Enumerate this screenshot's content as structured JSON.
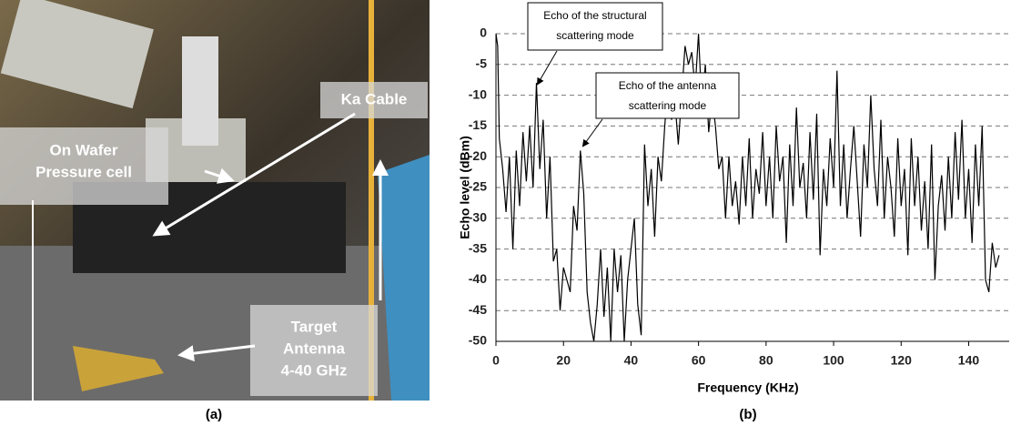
{
  "panel_a": {
    "labels": [
      [
        "On Wafer",
        "Pressure cell"
      ],
      [
        "Ka Cable"
      ],
      [
        "Target",
        "Antenna",
        "4-40 GHz"
      ]
    ],
    "caption": "(a)"
  },
  "chart_data": {
    "type": "line",
    "caption": "(b)",
    "xlabel": "Frequency (KHz)",
    "ylabel": "Echo level (dBm)",
    "color": "#000000",
    "x": [
      0,
      0.5,
      1,
      2,
      3,
      4,
      5,
      6,
      7,
      8,
      9,
      10,
      11,
      12,
      13,
      14,
      15,
      16,
      17,
      18,
      19,
      20,
      21,
      22,
      23,
      24,
      25,
      26,
      27,
      28,
      29,
      30,
      31,
      32,
      33,
      34,
      35,
      36,
      37,
      38,
      39,
      40,
      41,
      42,
      43,
      44,
      45,
      46,
      47,
      48,
      49,
      50,
      51,
      52,
      53,
      54,
      55,
      56,
      57,
      58,
      59,
      60,
      61,
      62,
      63,
      64,
      65,
      66,
      67,
      68,
      69,
      70,
      71,
      72,
      73,
      74,
      75,
      76,
      77,
      78,
      79,
      80,
      81,
      82,
      83,
      84,
      85,
      86,
      87,
      88,
      89,
      90,
      91,
      92,
      93,
      94,
      95,
      96,
      97,
      98,
      99,
      100,
      101,
      102,
      103,
      104,
      105,
      106,
      107,
      108,
      109,
      110,
      111,
      112,
      113,
      114,
      115,
      116,
      117,
      118,
      119,
      120,
      121,
      122,
      123,
      124,
      125,
      126,
      127,
      128,
      129,
      130,
      131,
      132,
      133,
      134,
      135,
      136,
      137,
      138,
      139,
      140,
      141,
      142,
      143,
      144,
      145,
      146,
      147,
      148,
      149
    ],
    "values": [
      0,
      -2,
      -17,
      -22,
      -29,
      -20,
      -35,
      -19,
      -28,
      -16,
      -24,
      -15,
      -25,
      -8,
      -22,
      -14,
      -30,
      -20,
      -37,
      -35,
      -45,
      -38,
      -40,
      -42,
      -28,
      -32,
      -19,
      -26,
      -42,
      -47,
      -50,
      -44,
      -35,
      -46,
      -38,
      -50,
      -35,
      -42,
      -36,
      -50,
      -40,
      -35,
      -30,
      -44,
      -49,
      -18,
      -28,
      -22,
      -33,
      -20,
      -24,
      -15,
      -8,
      -14,
      -11,
      -18,
      -10,
      -2,
      -5,
      -3,
      -9,
      0,
      -12,
      -5,
      -16,
      -10,
      -15,
      -22,
      -20,
      -30,
      -20,
      -28,
      -24,
      -31,
      -20,
      -28,
      -17,
      -30,
      -22,
      -26,
      -16,
      -28,
      -20,
      -30,
      -15,
      -24,
      -20,
      -34,
      -18,
      -28,
      -12,
      -25,
      -21,
      -30,
      -16,
      -27,
      -13,
      -36,
      -22,
      -28,
      -17,
      -25,
      -6,
      -28,
      -18,
      -30,
      -22,
      -15,
      -24,
      -33,
      -18,
      -25,
      -10,
      -22,
      -28,
      -14,
      -30,
      -20,
      -25,
      -33,
      -17,
      -28,
      -22,
      -36,
      -17,
      -28,
      -20,
      -32,
      -24,
      -35,
      -18,
      -40,
      -28,
      -23,
      -32,
      -20,
      -30,
      -16,
      -27,
      -14,
      -30,
      -22,
      -34,
      -18,
      -28,
      -15,
      -40,
      -42,
      -34,
      -38,
      -36
    ],
    "xlim": [
      0,
      152
    ],
    "xticks": [
      0,
      20,
      40,
      60,
      80,
      100,
      120,
      140
    ],
    "ylim": [
      -50,
      0
    ],
    "yticks": [
      0,
      -5,
      -10,
      -15,
      -20,
      -25,
      -30,
      -35,
      -40,
      -45,
      -50
    ],
    "grid": true,
    "annotations": [
      [
        "Echo of the structural",
        "scattering mode"
      ],
      [
        "Echo of the antenna",
        "scattering mode"
      ]
    ]
  }
}
